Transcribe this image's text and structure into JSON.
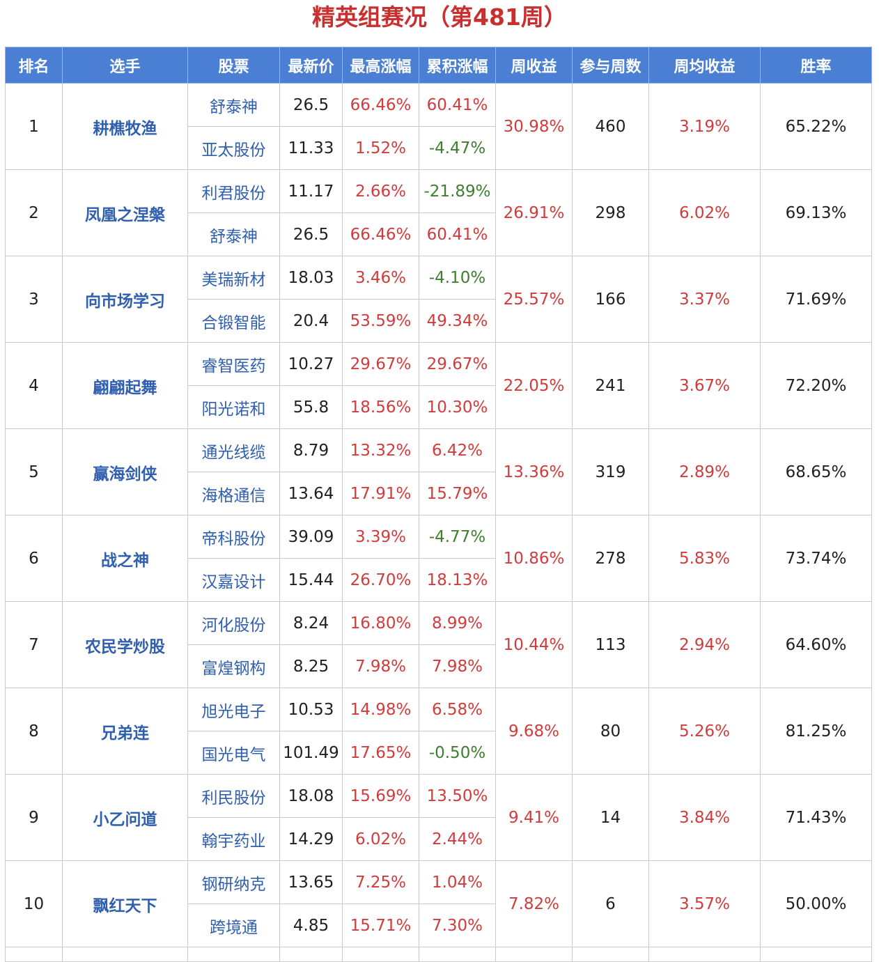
{
  "title": "精英组赛况（第481周）",
  "colors": {
    "title": "#c8302f",
    "header_bg": "#4a7fd4",
    "header_text": "#ffffff",
    "name_blue": "#2f5fae",
    "positive_red": "#d13b3b",
    "negative_green": "#3d7f2f"
  },
  "columns": [
    "排名",
    "选手",
    "股票",
    "最新价",
    "最高涨幅",
    "累积涨幅",
    "周收益",
    "参与周数",
    "周均收益",
    "胜率"
  ],
  "rows": [
    {
      "rank": "1",
      "player": "耕樵牧渔",
      "weekly_return": "30.98%",
      "weeks": "460",
      "avg_weekly": "3.19%",
      "win_rate": "65.22%",
      "stocks": [
        {
          "name": "舒泰神",
          "price": "26.5",
          "max_gain": "66.46%",
          "cum_gain": "60.41%"
        },
        {
          "name": "亚太股份",
          "price": "11.33",
          "max_gain": "1.52%",
          "cum_gain": "-4.47%"
        }
      ]
    },
    {
      "rank": "2",
      "player": "凤凰之涅槃",
      "weekly_return": "26.91%",
      "weeks": "298",
      "avg_weekly": "6.02%",
      "win_rate": "69.13%",
      "stocks": [
        {
          "name": "利君股份",
          "price": "11.17",
          "max_gain": "2.66%",
          "cum_gain": "-21.89%"
        },
        {
          "name": "舒泰神",
          "price": "26.5",
          "max_gain": "66.46%",
          "cum_gain": "60.41%"
        }
      ]
    },
    {
      "rank": "3",
      "player": "向市场学习",
      "weekly_return": "25.57%",
      "weeks": "166",
      "avg_weekly": "3.37%",
      "win_rate": "71.69%",
      "stocks": [
        {
          "name": "美瑞新材",
          "price": "18.03",
          "max_gain": "3.46%",
          "cum_gain": "-4.10%"
        },
        {
          "name": "合锻智能",
          "price": "20.4",
          "max_gain": "53.59%",
          "cum_gain": "49.34%"
        }
      ]
    },
    {
      "rank": "4",
      "player": "翩翩起舞",
      "weekly_return": "22.05%",
      "weeks": "241",
      "avg_weekly": "3.67%",
      "win_rate": "72.20%",
      "stocks": [
        {
          "name": "睿智医药",
          "price": "10.27",
          "max_gain": "29.67%",
          "cum_gain": "29.67%"
        },
        {
          "name": "阳光诺和",
          "price": "55.8",
          "max_gain": "18.56%",
          "cum_gain": "10.30%"
        }
      ]
    },
    {
      "rank": "5",
      "player": "赢海剑侠",
      "weekly_return": "13.36%",
      "weeks": "319",
      "avg_weekly": "2.89%",
      "win_rate": "68.65%",
      "stocks": [
        {
          "name": "通光线缆",
          "price": "8.79",
          "max_gain": "13.32%",
          "cum_gain": "6.42%"
        },
        {
          "name": "海格通信",
          "price": "13.64",
          "max_gain": "17.91%",
          "cum_gain": "15.79%"
        }
      ]
    },
    {
      "rank": "6",
      "player": "战之神",
      "weekly_return": "10.86%",
      "weeks": "278",
      "avg_weekly": "5.83%",
      "win_rate": "73.74%",
      "stocks": [
        {
          "name": "帝科股份",
          "price": "39.09",
          "max_gain": "3.39%",
          "cum_gain": "-4.77%"
        },
        {
          "name": "汉嘉设计",
          "price": "15.44",
          "max_gain": "26.70%",
          "cum_gain": "18.13%"
        }
      ]
    },
    {
      "rank": "7",
      "player": "农民学炒股",
      "weekly_return": "10.44%",
      "weeks": "113",
      "avg_weekly": "2.94%",
      "win_rate": "64.60%",
      "stocks": [
        {
          "name": "河化股份",
          "price": "8.24",
          "max_gain": "16.80%",
          "cum_gain": "8.99%"
        },
        {
          "name": "富煌钢构",
          "price": "8.25",
          "max_gain": "7.98%",
          "cum_gain": "7.98%"
        }
      ]
    },
    {
      "rank": "8",
      "player": "兄弟连",
      "weekly_return": "9.68%",
      "weeks": "80",
      "avg_weekly": "5.26%",
      "win_rate": "81.25%",
      "stocks": [
        {
          "name": "旭光电子",
          "price": "10.53",
          "max_gain": "14.98%",
          "cum_gain": "6.58%"
        },
        {
          "name": "国光电气",
          "price": "101.49",
          "max_gain": "17.65%",
          "cum_gain": "-0.50%"
        }
      ]
    },
    {
      "rank": "9",
      "player": "小乙问道",
      "weekly_return": "9.41%",
      "weeks": "14",
      "avg_weekly": "3.84%",
      "win_rate": "71.43%",
      "stocks": [
        {
          "name": "利民股份",
          "price": "18.08",
          "max_gain": "15.69%",
          "cum_gain": "13.50%"
        },
        {
          "name": "翰宇药业",
          "price": "14.29",
          "max_gain": "6.02%",
          "cum_gain": "2.44%"
        }
      ]
    },
    {
      "rank": "10",
      "player": "飘红天下",
      "weekly_return": "7.82%",
      "weeks": "6",
      "avg_weekly": "3.57%",
      "win_rate": "50.00%",
      "stocks": [
        {
          "name": "钢研纳克",
          "price": "13.65",
          "max_gain": "7.25%",
          "cum_gain": "1.04%"
        },
        {
          "name": "跨境通",
          "price": "4.85",
          "max_gain": "15.71%",
          "cum_gain": "7.30%"
        }
      ]
    }
  ]
}
